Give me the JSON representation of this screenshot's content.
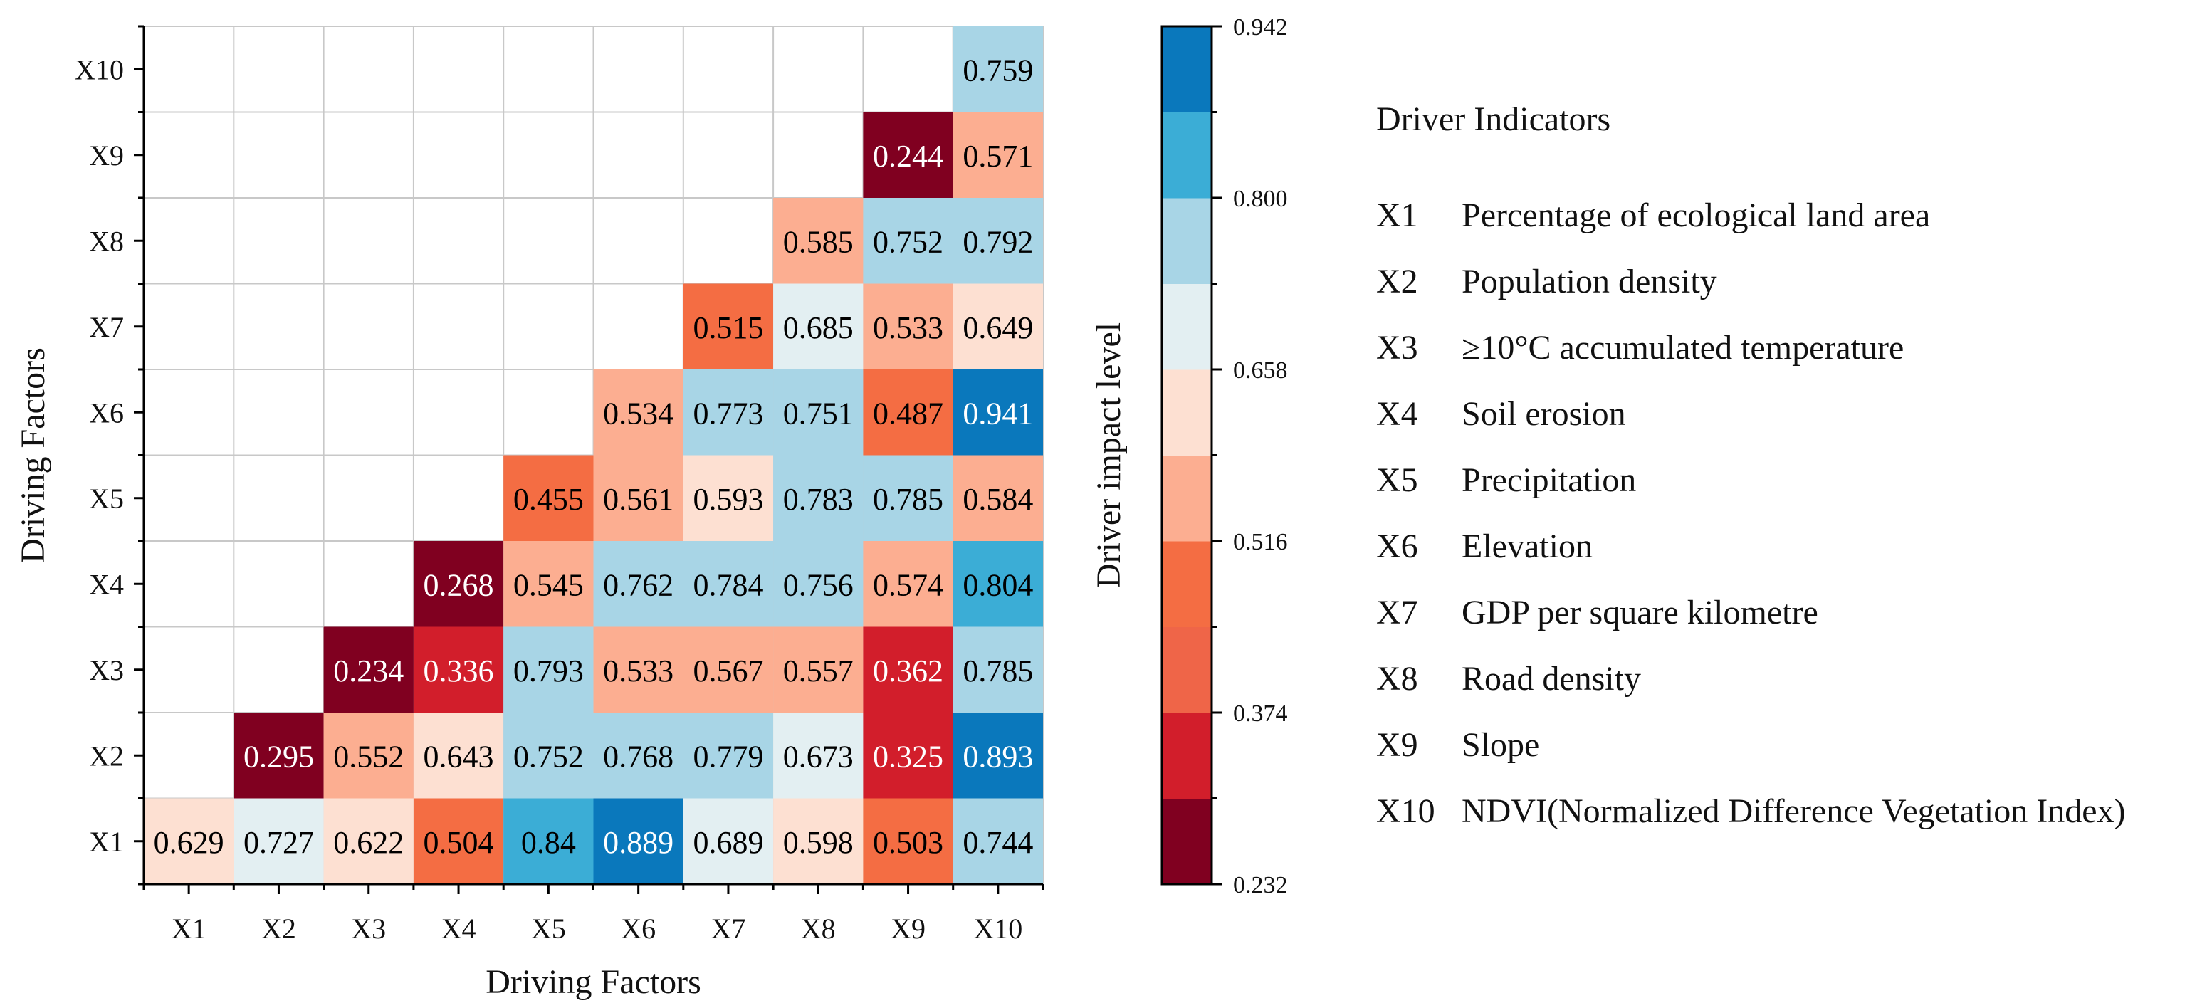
{
  "chart_data": {
    "type": "heatmap",
    "title": "",
    "xlabel": "Driving Factors",
    "ylabel": "Driving Factors",
    "categories": [
      "X1",
      "X2",
      "X3",
      "X4",
      "X5",
      "X6",
      "X7",
      "X8",
      "X9",
      "X10"
    ],
    "cells": [
      {
        "x": "X1",
        "y": "X1",
        "value": 0.629
      },
      {
        "x": "X2",
        "y": "X1",
        "value": 0.727
      },
      {
        "x": "X3",
        "y": "X1",
        "value": 0.622
      },
      {
        "x": "X4",
        "y": "X1",
        "value": 0.504
      },
      {
        "x": "X5",
        "y": "X1",
        "value": 0.84
      },
      {
        "x": "X6",
        "y": "X1",
        "value": 0.889
      },
      {
        "x": "X7",
        "y": "X1",
        "value": 0.689
      },
      {
        "x": "X8",
        "y": "X1",
        "value": 0.598
      },
      {
        "x": "X9",
        "y": "X1",
        "value": 0.503
      },
      {
        "x": "X10",
        "y": "X1",
        "value": 0.744
      },
      {
        "x": "X2",
        "y": "X2",
        "value": 0.295
      },
      {
        "x": "X3",
        "y": "X2",
        "value": 0.552
      },
      {
        "x": "X4",
        "y": "X2",
        "value": 0.643
      },
      {
        "x": "X5",
        "y": "X2",
        "value": 0.752
      },
      {
        "x": "X6",
        "y": "X2",
        "value": 0.768
      },
      {
        "x": "X7",
        "y": "X2",
        "value": 0.779
      },
      {
        "x": "X8",
        "y": "X2",
        "value": 0.673
      },
      {
        "x": "X9",
        "y": "X2",
        "value": 0.325
      },
      {
        "x": "X10",
        "y": "X2",
        "value": 0.893
      },
      {
        "x": "X3",
        "y": "X3",
        "value": 0.234
      },
      {
        "x": "X4",
        "y": "X3",
        "value": 0.336
      },
      {
        "x": "X5",
        "y": "X3",
        "value": 0.793
      },
      {
        "x": "X6",
        "y": "X3",
        "value": 0.533
      },
      {
        "x": "X7",
        "y": "X3",
        "value": 0.567
      },
      {
        "x": "X8",
        "y": "X3",
        "value": 0.557
      },
      {
        "x": "X9",
        "y": "X3",
        "value": 0.362
      },
      {
        "x": "X10",
        "y": "X3",
        "value": 0.785
      },
      {
        "x": "X4",
        "y": "X4",
        "value": 0.268
      },
      {
        "x": "X5",
        "y": "X4",
        "value": 0.545
      },
      {
        "x": "X6",
        "y": "X4",
        "value": 0.762
      },
      {
        "x": "X7",
        "y": "X4",
        "value": 0.784
      },
      {
        "x": "X8",
        "y": "X4",
        "value": 0.756
      },
      {
        "x": "X9",
        "y": "X4",
        "value": 0.574
      },
      {
        "x": "X10",
        "y": "X4",
        "value": 0.804
      },
      {
        "x": "X5",
        "y": "X5",
        "value": 0.455
      },
      {
        "x": "X6",
        "y": "X5",
        "value": 0.561
      },
      {
        "x": "X7",
        "y": "X5",
        "value": 0.593
      },
      {
        "x": "X8",
        "y": "X5",
        "value": 0.783
      },
      {
        "x": "X9",
        "y": "X5",
        "value": 0.785
      },
      {
        "x": "X10",
        "y": "X5",
        "value": 0.584
      },
      {
        "x": "X6",
        "y": "X6",
        "value": 0.534
      },
      {
        "x": "X7",
        "y": "X6",
        "value": 0.773
      },
      {
        "x": "X8",
        "y": "X6",
        "value": 0.751
      },
      {
        "x": "X9",
        "y": "X6",
        "value": 0.487
      },
      {
        "x": "X10",
        "y": "X6",
        "value": 0.941
      },
      {
        "x": "X7",
        "y": "X7",
        "value": 0.515
      },
      {
        "x": "X8",
        "y": "X7",
        "value": 0.685
      },
      {
        "x": "X9",
        "y": "X7",
        "value": 0.533
      },
      {
        "x": "X10",
        "y": "X7",
        "value": 0.649
      },
      {
        "x": "X8",
        "y": "X8",
        "value": 0.585
      },
      {
        "x": "X9",
        "y": "X8",
        "value": 0.752
      },
      {
        "x": "X10",
        "y": "X8",
        "value": 0.792
      },
      {
        "x": "X9",
        "y": "X9",
        "value": 0.244
      },
      {
        "x": "X10",
        "y": "X9",
        "value": 0.571
      },
      {
        "x": "X10",
        "y": "X10",
        "value": 0.759
      }
    ],
    "colorbar": {
      "label": "Driver impact level",
      "range": [
        0.232,
        0.942
      ],
      "tick_values": [
        0.232,
        0.374,
        0.516,
        0.658,
        0.8,
        0.942
      ],
      "tick_labels": [
        "0.232",
        "0.374",
        "0.516",
        "0.658",
        "0.800",
        "0.942"
      ],
      "bins": 10,
      "colors": [
        "#800020",
        "#d21e2b",
        "#ef6548",
        "#f46d43",
        "#fcae91",
        "#fde0d2",
        "#e3eff2",
        "#a8d5e6",
        "#3badd6",
        "#0a78bc"
      ]
    },
    "text_colors": {
      "dark": "#000000",
      "light": "#ffffff"
    },
    "grid": true,
    "legend_position": "right"
  },
  "legend": {
    "title": "Driver Indicators",
    "items": [
      {
        "code": "X1",
        "label": "Percentage of ecological land area"
      },
      {
        "code": "X2",
        "label": "Population density"
      },
      {
        "code": "X3",
        "label": "≥10°C accumulated temperature"
      },
      {
        "code": "X4",
        "label": "Soil erosion"
      },
      {
        "code": "X5",
        "label": "Precipitation"
      },
      {
        "code": "X6",
        "label": "Elevation"
      },
      {
        "code": "X7",
        "label": "GDP per square kilometre"
      },
      {
        "code": "X8",
        "label": "Road density"
      },
      {
        "code": "X9",
        "label": "Slope"
      },
      {
        "code": "X10",
        "label": "NDVI(Normalized Difference Vegetation Index)"
      }
    ]
  }
}
